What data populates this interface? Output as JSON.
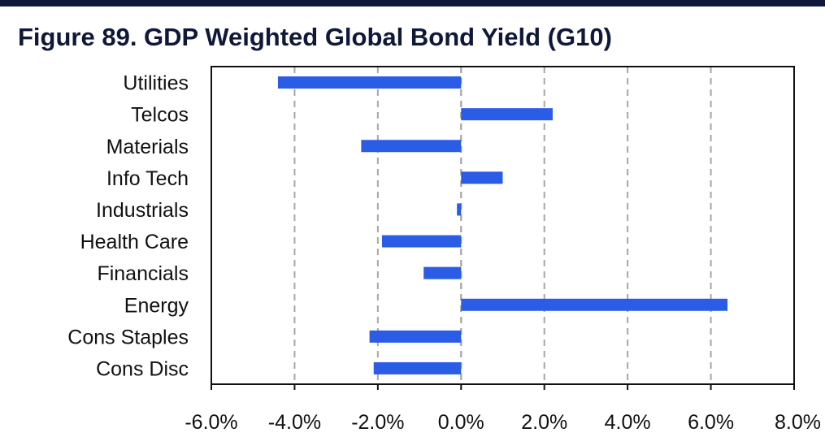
{
  "title": "Figure 89. GDP Weighted Global Bond Yield (G10)",
  "colors": {
    "bar": "#2b5ce6",
    "grid": "#a6a6a6",
    "axis": "#111111",
    "title": "#10183a"
  },
  "chart_data": {
    "type": "bar",
    "orientation": "horizontal",
    "title": "Figure 89. GDP Weighted Global Bond Yield (G10)",
    "categories": [
      "Utilities",
      "Telcos",
      "Materials",
      "Info Tech",
      "Industrials",
      "Health Care",
      "Financials",
      "Energy",
      "Cons Staples",
      "Cons Disc"
    ],
    "values": [
      -4.4,
      2.2,
      -2.4,
      1.0,
      -0.1,
      -1.9,
      -0.9,
      6.4,
      -2.2,
      -2.1
    ],
    "xlim": [
      -6.0,
      8.0
    ],
    "xticks": [
      "-6.0%",
      "-4.0%",
      "-2.0%",
      "0.0%",
      "2.0%",
      "4.0%",
      "6.0%",
      "8.0%"
    ],
    "xtick_values": [
      -6,
      -4,
      -2,
      0,
      2,
      4,
      6,
      8
    ],
    "grid": "vertical-dashed",
    "legend": "none"
  }
}
